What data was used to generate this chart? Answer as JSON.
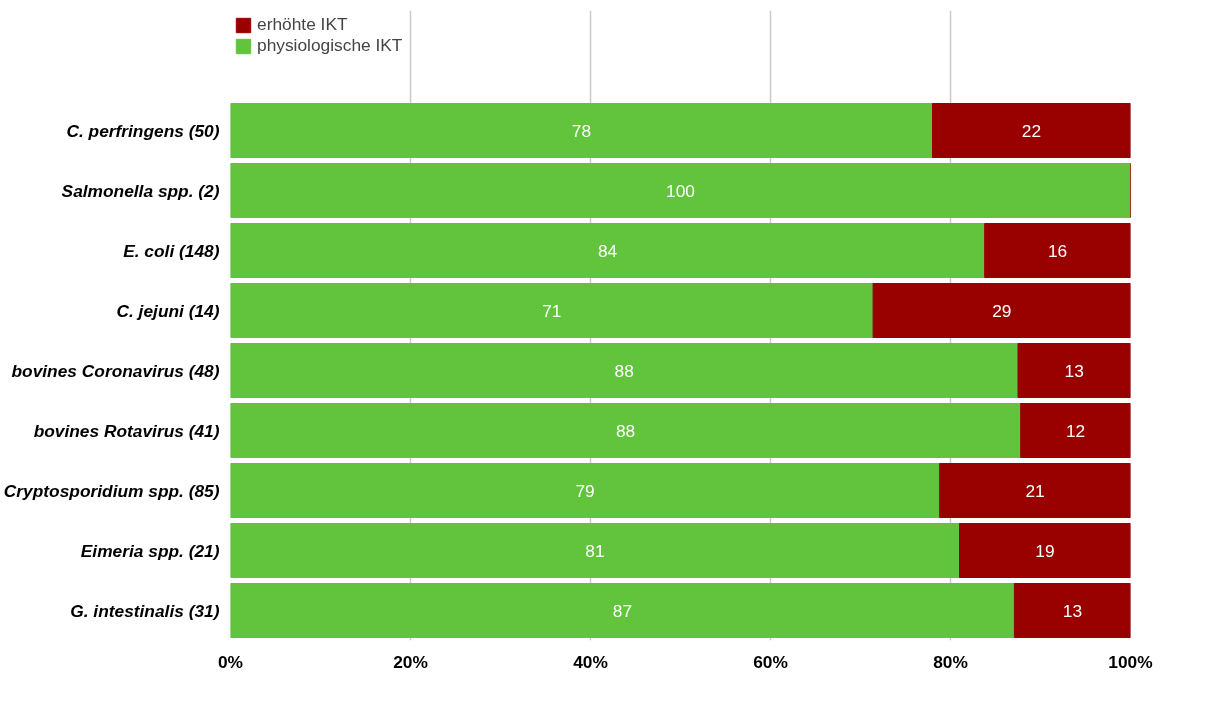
{
  "chart_data": {
    "type": "bar",
    "orientation": "horizontal",
    "stacked": true,
    "categories": [
      "C. perfringens (50)",
      "Salmonella spp. (2)",
      "E. coli (148)",
      "C. jejuni (14)",
      "bovines Coronavirus (48)",
      "bovines Rotavirus (41)",
      "Cryptosporidium spp. (85)",
      "Eimeria spp. (21)",
      "G. intestinalis (31)"
    ],
    "series": [
      {
        "name": "physiologische IKT",
        "color": "#62c43c",
        "values": [
          78,
          100,
          83.8,
          71.4,
          87.5,
          87.8,
          78.8,
          81.0,
          87.1
        ],
        "value_labels": [
          "78",
          "100",
          "84",
          "71",
          "88",
          "88",
          "79",
          "81",
          "87"
        ]
      },
      {
        "name": "erhöhte IKT",
        "color": "#990000",
        "values": [
          22,
          0,
          16.2,
          28.6,
          12.5,
          12.2,
          21.2,
          19.0,
          12.9
        ],
        "value_labels": [
          "22",
          null,
          "16",
          "29",
          "13",
          "12",
          "21",
          "19",
          "13"
        ]
      }
    ],
    "xlim": [
      0,
      100
    ],
    "xticks": [
      {
        "value": 0,
        "label": "0%"
      },
      {
        "value": 20,
        "label": "20%"
      },
      {
        "value": 40,
        "label": "40%"
      },
      {
        "value": 60,
        "label": "60%"
      },
      {
        "value": 80,
        "label": "80%"
      },
      {
        "value": 100,
        "label": "100%"
      }
    ],
    "grid": "x",
    "legend": "top left"
  }
}
